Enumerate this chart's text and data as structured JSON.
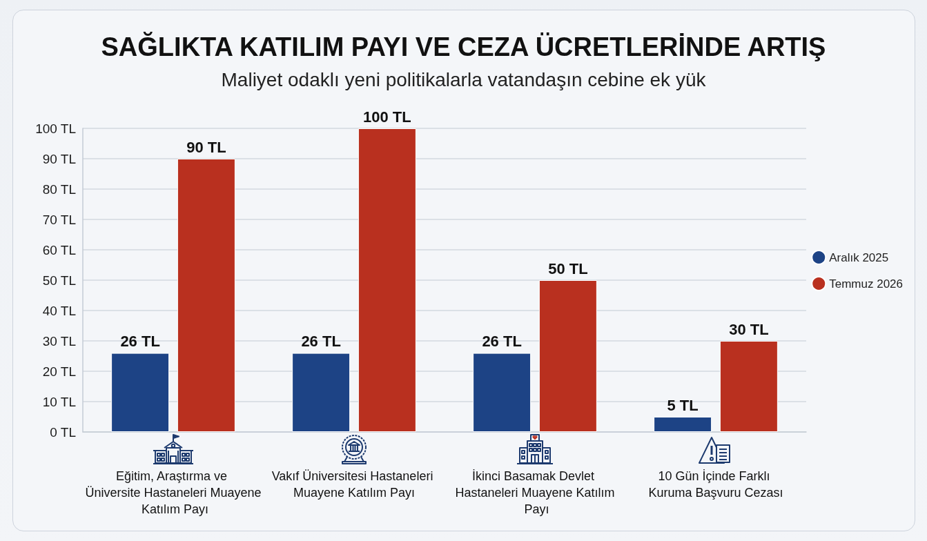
{
  "chart_data": {
    "type": "bar",
    "title": "SAĞLIKTA KATILIM PAYI VE CEZA ÜCRETLERİNDE ARTIŞ",
    "subtitle": "Maliyet odaklı yeni politikalarla vatandaşın cebine ek yük",
    "categories": [
      "Eğitim, Araştırma ve Üniversite Hastaneleri Muayene Katılım Payı",
      "Vakıf Üniversitesi Hastaneleri Muayene Katılım Payı",
      "İkinci Basamak Devlet Hastaneleri Muayene Katılım Payı",
      "10 Gün İçinde Farklı Kuruma Başvuru Cezası"
    ],
    "series": [
      {
        "name": "Aralık 2025",
        "color": "#1d4385",
        "values": [
          26,
          26,
          26,
          5
        ],
        "value_labels": [
          "26 TL",
          "26 TL",
          "26 TL",
          "5 TL"
        ]
      },
      {
        "name": "Temmuz 2026",
        "color": "#b9301f",
        "values": [
          90,
          100,
          50,
          30
        ],
        "value_labels": [
          "90 TL",
          "100 TL",
          "50 TL",
          "30 TL"
        ]
      }
    ],
    "ylim": [
      0,
      100
    ],
    "yticks": [
      {
        "value": 0,
        "label": "0 TL"
      },
      {
        "value": 10,
        "label": "10 TL"
      },
      {
        "value": 20,
        "label": "20 TL"
      },
      {
        "value": 30,
        "label": "30 TL"
      },
      {
        "value": 40,
        "label": "40 TL"
      },
      {
        "value": 50,
        "label": "50 TL"
      },
      {
        "value": 60,
        "label": "60 TL"
      },
      {
        "value": 70,
        "label": "70 TL"
      },
      {
        "value": 80,
        "label": "80 TL"
      },
      {
        "value": 90,
        "label": "90 TL"
      },
      {
        "value": 100,
        "label": "100 TL"
      }
    ],
    "grid": "y",
    "legend": "right"
  }
}
